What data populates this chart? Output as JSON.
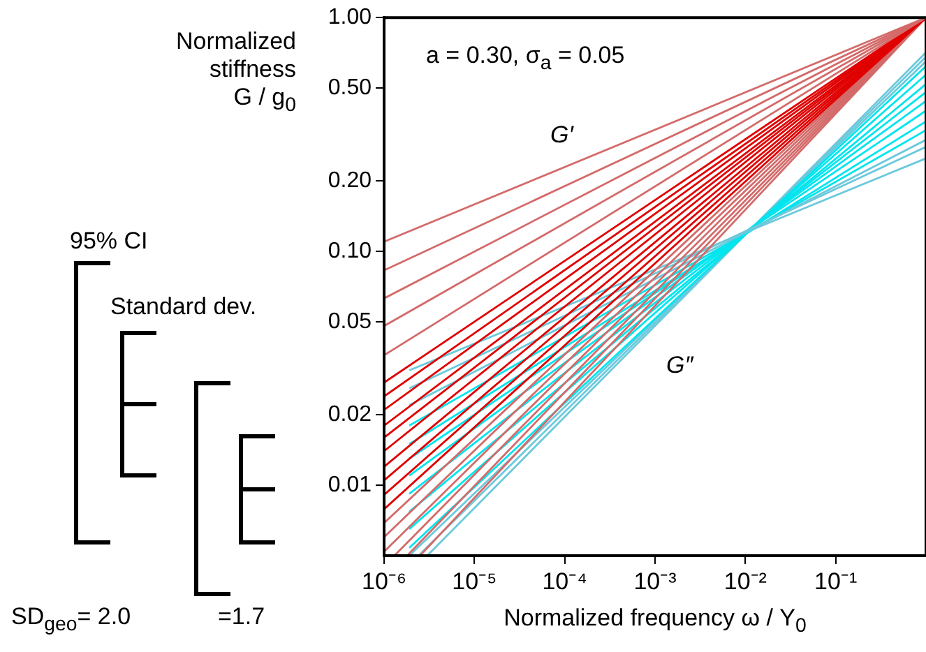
{
  "chart_data": {
    "type": "line",
    "xlabel": "Normalized frequency ω / Y$_{0}$",
    "ylabel": "Normalized stiffness G / g$_{0}$",
    "log": "xy",
    "grid": false,
    "legend": false,
    "marker": "none",
    "line_style": "solid",
    "xlim": [
      1e-06,
      1
    ],
    "ylim": [
      0.005,
      1
    ],
    "xticks": [
      {
        "value": 1e-06,
        "label": "10⁻⁶"
      },
      {
        "value": 1e-05,
        "label": "10⁻⁵"
      },
      {
        "value": 0.0001,
        "label": "10⁻⁴"
      },
      {
        "value": 0.001,
        "label": "10⁻³"
      },
      {
        "value": 0.01,
        "label": "10⁻²"
      },
      {
        "value": 0.1,
        "label": "10⁻¹"
      }
    ],
    "yticks": [
      {
        "value": 0.01,
        "label": "0.01"
      },
      {
        "value": 0.02,
        "label": "0.02"
      },
      {
        "value": 0.05,
        "label": "0.05"
      },
      {
        "value": 0.1,
        "label": "0.10"
      },
      {
        "value": 0.2,
        "label": "0.20"
      },
      {
        "value": 0.5,
        "label": "0.50"
      },
      {
        "value": 1,
        "label": "1.00"
      }
    ],
    "annotations": [
      "a = 0.30, σ$_{a}$ = 0.05",
      "95% CI",
      "Standard dev.",
      "SD$_{geo}$= 2.0",
      "=1.7",
      "G′",
      "G″"
    ],
    "series": [
      {
        "color": "#d46a6a",
        "x": [
          1e-06,
          1
        ],
        "values": [
          0.11,
          1
        ]
      },
      {
        "color": "#d46a6a",
        "x": [
          1e-06,
          1
        ],
        "values": [
          0.083,
          1
        ]
      },
      {
        "color": "#d46a6a",
        "x": [
          1e-06,
          1
        ],
        "values": [
          0.063,
          1
        ]
      },
      {
        "color": "#d46a6a",
        "x": [
          1e-06,
          1
        ],
        "values": [
          0.048,
          1
        ]
      },
      {
        "color": "#d46a6a",
        "x": [
          1e-06,
          1
        ],
        "values": [
          0.036,
          1
        ]
      },
      {
        "color": "#e00000",
        "x": [
          1e-06,
          1
        ],
        "values": [
          0.0275,
          1
        ]
      },
      {
        "color": "#e00000",
        "x": [
          1e-06,
          1
        ],
        "values": [
          0.024,
          1
        ]
      },
      {
        "color": "#e00000",
        "x": [
          1e-06,
          1
        ],
        "values": [
          0.021,
          1
        ]
      },
      {
        "color": "#e00000",
        "x": [
          1e-06,
          1
        ],
        "values": [
          0.018,
          1
        ]
      },
      {
        "color": "#e00000",
        "x": [
          1e-06,
          1
        ],
        "values": [
          0.016,
          1
        ]
      },
      {
        "color": "#e00000",
        "x": [
          1e-06,
          1
        ],
        "values": [
          0.014,
          1
        ]
      },
      {
        "color": "#e00000",
        "x": [
          1e-06,
          1
        ],
        "values": [
          0.012,
          1
        ]
      },
      {
        "color": "#e00000",
        "x": [
          1e-06,
          1
        ],
        "values": [
          0.0105,
          1
        ]
      },
      {
        "color": "#e00000",
        "x": [
          1e-06,
          1
        ],
        "values": [
          0.0091,
          1
        ]
      },
      {
        "color": "#e00000",
        "x": [
          1e-06,
          1
        ],
        "values": [
          0.0079,
          1
        ]
      },
      {
        "color": "#d46a6a",
        "x": [
          1e-06,
          1
        ],
        "values": [
          0.0069,
          1
        ]
      },
      {
        "color": "#d46a6a",
        "x": [
          1e-06,
          1
        ],
        "values": [
          0.006,
          1
        ]
      },
      {
        "color": "#d46a6a",
        "x": [
          1e-06,
          1
        ],
        "values": [
          0.0052,
          1
        ]
      },
      {
        "color": "#d46a6a",
        "x": [
          1.3e-06,
          1
        ],
        "values": [
          0.005,
          1
        ]
      },
      {
        "color": "#d46a6a",
        "x": [
          1.8e-06,
          1
        ],
        "values": [
          0.005,
          1
        ]
      },
      {
        "color": "#d46a6a",
        "x": [
          2.5e-06,
          1
        ],
        "values": [
          0.005,
          1
        ]
      },
      {
        "color": "#6cc9dc",
        "x": [
          1.9e-06,
          1
        ],
        "values": [
          0.031,
          0.25
        ]
      },
      {
        "color": "#6cc9dc",
        "x": [
          1.9e-06,
          1
        ],
        "values": [
          0.026,
          0.28
        ]
      },
      {
        "color": "#6cc9dc",
        "x": [
          1.9e-06,
          1
        ],
        "values": [
          0.022,
          0.3
        ]
      },
      {
        "color": "#00e5ee",
        "x": [
          1.9e-06,
          1
        ],
        "values": [
          0.018,
          0.33
        ]
      },
      {
        "color": "#00e5ee",
        "x": [
          1.9e-06,
          1
        ],
        "values": [
          0.015,
          0.36
        ]
      },
      {
        "color": "#00e5ee",
        "x": [
          1.9e-06,
          1
        ],
        "values": [
          0.013,
          0.4
        ]
      },
      {
        "color": "#00e5ee",
        "x": [
          1.9e-06,
          1
        ],
        "values": [
          0.011,
          0.44
        ]
      },
      {
        "color": "#00e5ee",
        "x": [
          1.9e-06,
          1
        ],
        "values": [
          0.0092,
          0.48
        ]
      },
      {
        "color": "#00e5ee",
        "x": [
          1.9e-06,
          1
        ],
        "values": [
          0.0077,
          0.52
        ]
      },
      {
        "color": "#00e5ee",
        "x": [
          1.9e-06,
          1
        ],
        "values": [
          0.0065,
          0.57
        ]
      },
      {
        "color": "#00e5ee",
        "x": [
          1.9e-06,
          1
        ],
        "values": [
          0.0054,
          0.62
        ]
      },
      {
        "color": "#6cc9dc",
        "x": [
          1.9e-06,
          1
        ],
        "values": [
          0.005,
          0.65
        ]
      },
      {
        "color": "#6cc9dc",
        "x": [
          2.4e-06,
          1
        ],
        "values": [
          0.005,
          0.68
        ]
      },
      {
        "color": "#6cc9dc",
        "x": [
          3e-06,
          1
        ],
        "values": [
          0.005,
          0.71
        ]
      }
    ]
  }
}
